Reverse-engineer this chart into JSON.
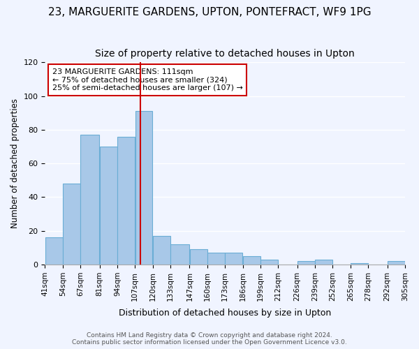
{
  "title": "23, MARGUERITE GARDENS, UPTON, PONTEFRACT, WF9 1PG",
  "subtitle": "Size of property relative to detached houses in Upton",
  "xlabel": "Distribution of detached houses by size in Upton",
  "ylabel": "Number of detached properties",
  "bins": [
    41,
    54,
    67,
    81,
    94,
    107,
    120,
    133,
    147,
    160,
    173,
    186,
    199,
    212,
    226,
    239,
    252,
    265,
    278,
    292,
    305
  ],
  "bin_labels": [
    "41sqm",
    "54sqm",
    "67sqm",
    "81sqm",
    "94sqm",
    "107sqm",
    "120sqm",
    "133sqm",
    "147sqm",
    "160sqm",
    "173sqm",
    "186sqm",
    "199sqm",
    "212sqm",
    "226sqm",
    "239sqm",
    "252sqm",
    "265sqm",
    "278sqm",
    "292sqm",
    "305sqm"
  ],
  "values": [
    16,
    48,
    77,
    70,
    76,
    91,
    17,
    12,
    9,
    7,
    7,
    5,
    3,
    0,
    2,
    3,
    0,
    1,
    0,
    2
  ],
  "bar_color": "#a8c8e8",
  "bar_edgecolor": "#6aadd5",
  "vline_x": 111,
  "vline_color": "#cc0000",
  "annotation_text": "23 MARGUERITE GARDENS: 111sqm\n← 75% of detached houses are smaller (324)\n25% of semi-detached houses are larger (107) →",
  "annotation_box_edgecolor": "#cc0000",
  "annotation_box_facecolor": "#ffffff",
  "ylim": [
    0,
    120
  ],
  "yticks": [
    0,
    20,
    40,
    60,
    80,
    100,
    120
  ],
  "footer": "Contains HM Land Registry data © Crown copyright and database right 2024.\nContains public sector information licensed under the Open Government Licence v3.0.",
  "title_fontsize": 11,
  "subtitle_fontsize": 10,
  "background_color": "#f0f4ff"
}
